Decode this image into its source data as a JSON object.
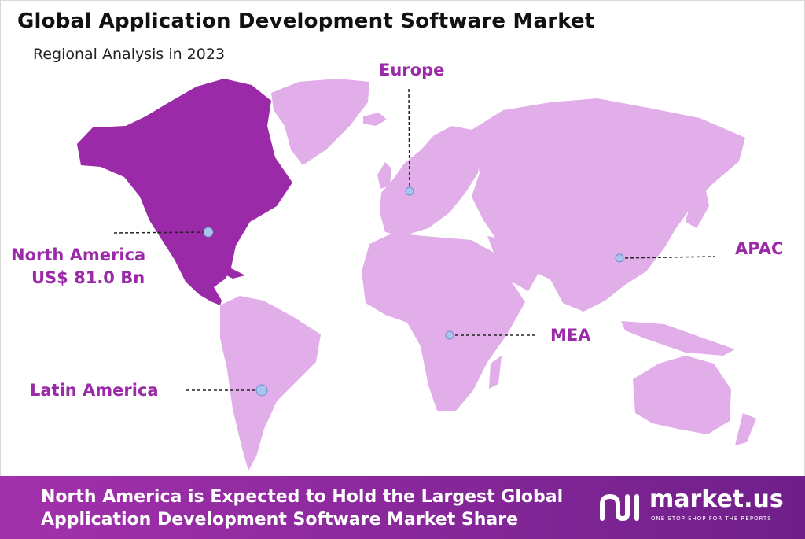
{
  "header": {
    "title": "Global Application Development Software Market",
    "subtitle": "Regional Analysis in 2023"
  },
  "regions": {
    "north_america": {
      "name": "North America",
      "value": "US$ 81.0 Bn"
    },
    "europe": {
      "name": "Europe"
    },
    "apac": {
      "name": "APAC"
    },
    "mea": {
      "name": "MEA"
    },
    "latin_america": {
      "name": "Latin America"
    }
  },
  "footer": {
    "line1": "North America is Expected to Hold the Largest Global",
    "line2": "Application Development Software Market Share"
  },
  "logo": {
    "name": "market.us",
    "tagline": "ONE STOP SHOP FOR THE REPORTS"
  },
  "colors": {
    "highlight_region": "#9b2aa8",
    "other_regions": "#e2aeea",
    "label": "#9b2aa8",
    "marker": "#a9c4ef",
    "footer_start": "#a331ac",
    "footer_end": "#6f1f8a"
  }
}
